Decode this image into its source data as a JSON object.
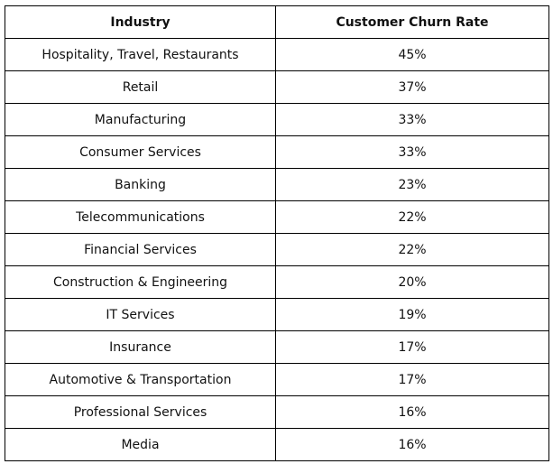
{
  "table": {
    "headers": {
      "industry": "Industry",
      "churn": "Customer Churn Rate"
    },
    "rows": [
      {
        "industry": "Hospitality, Travel, Restaurants",
        "churn": "45%"
      },
      {
        "industry": "Retail",
        "churn": "37%"
      },
      {
        "industry": "Manufacturing",
        "churn": "33%"
      },
      {
        "industry": "Consumer Services",
        "churn": "33%"
      },
      {
        "industry": "Banking",
        "churn": "23%"
      },
      {
        "industry": "Telecommunications",
        "churn": "22%"
      },
      {
        "industry": "Financial Services",
        "churn": "22%"
      },
      {
        "industry": "Construction & Engineering",
        "churn": "20%"
      },
      {
        "industry": "IT Services",
        "churn": "19%"
      },
      {
        "industry": "Insurance",
        "churn": "17%"
      },
      {
        "industry": "Automotive & Transportation",
        "churn": "17%"
      },
      {
        "industry": "Professional Services",
        "churn": "16%"
      },
      {
        "industry": "Media",
        "churn": "16%"
      }
    ]
  }
}
